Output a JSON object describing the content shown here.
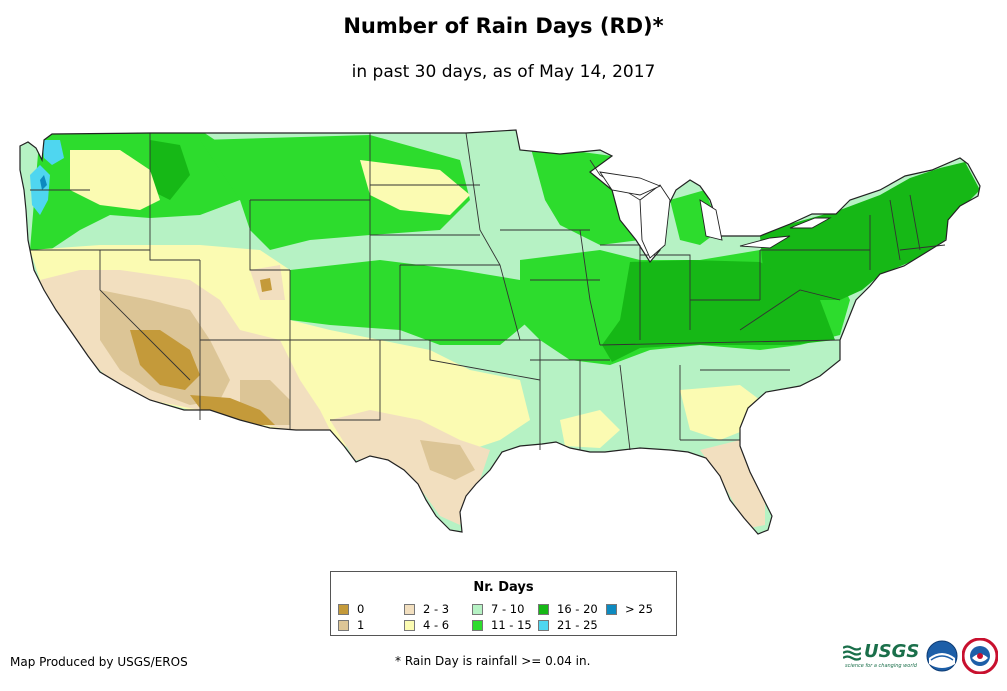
{
  "header": {
    "title": "Number of Rain Days (RD)*",
    "subtitle": "in past 30 days, as of May 14, 2017"
  },
  "legend": {
    "title": "Nr. Days",
    "items": [
      {
        "label": "0",
        "color": "#c49a3a"
      },
      {
        "label": "1",
        "color": "#dcc596"
      },
      {
        "label": "2 - 3",
        "color": "#f2dfbf"
      },
      {
        "label": "4 - 6",
        "color": "#fbfbb2"
      },
      {
        "label": "7 - 10",
        "color": "#b6f2c4"
      },
      {
        "label": "11 - 15",
        "color": "#2ddc2d"
      },
      {
        "label": "16 - 20",
        "color": "#16b816"
      },
      {
        "label": "21 - 25",
        "color": "#4fd6f0"
      },
      {
        "label": "> 25",
        "color": "#0d8ac0"
      }
    ]
  },
  "footer": {
    "credit": "Map Produced by USGS/EROS",
    "note": "* Rain Day is rainfall >= 0.04 in."
  },
  "logos": {
    "usgs_text": "USGS",
    "usgs_tagline": "science for a changing world"
  },
  "colors": {
    "state_border": "#333333",
    "outline": "#222222"
  }
}
